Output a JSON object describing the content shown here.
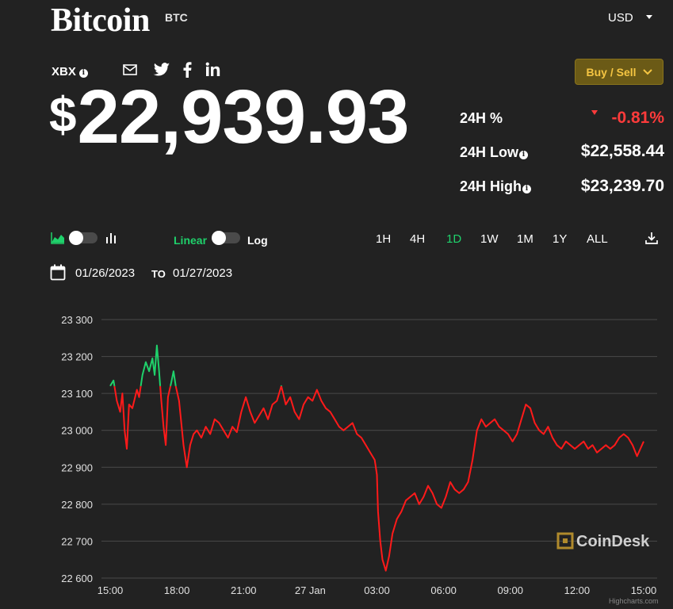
{
  "header": {
    "title": "Bitcoin",
    "ticker": "BTC",
    "currency": "USD",
    "index_label": "XBX",
    "buy_sell_label": "Buy / Sell"
  },
  "price": {
    "currency_symbol": "$",
    "value": "22,939.93"
  },
  "stats": {
    "change_label": "24H %",
    "change_value": "-0.81%",
    "low_label": "24H Low",
    "low_value": "$22,558.44",
    "high_label": "24H High",
    "high_value": "$23,239.70"
  },
  "controls": {
    "scale_linear": "Linear",
    "scale_log": "Log",
    "ranges": [
      "1H",
      "4H",
      "1D",
      "1W",
      "1M",
      "1Y",
      "ALL"
    ],
    "active_range": "1D",
    "date_from": "01/26/2023",
    "date_to_label": "TO",
    "date_to": "01/27/2023"
  },
  "watermark": "CoinDesk",
  "credit": "Highcharts.com",
  "colors": {
    "up": "#1fd16b",
    "down": "#ff1a1a",
    "accent": "#f5c542"
  },
  "icons": [
    "info-icon",
    "mail-icon",
    "twitter-icon",
    "facebook-icon",
    "linkedin-icon",
    "area-chart-icon",
    "bar-chart-icon",
    "download-icon",
    "calendar-icon",
    "coindesk-logo"
  ],
  "chart_data": {
    "type": "line",
    "yticks": [
      22600,
      22700,
      22800,
      22900,
      23000,
      23100,
      23200,
      23300
    ],
    "ytick_labels": [
      "22 600",
      "22 700",
      "22 800",
      "22 900",
      "23 000",
      "23 100",
      "23 200",
      "23 300"
    ],
    "ylim": [
      22600,
      23300
    ],
    "xticks": [
      0,
      3,
      6,
      9,
      12,
      15,
      18,
      21,
      24
    ],
    "xtick_labels": [
      "15:00",
      "18:00",
      "21:00",
      "27 Jan",
      "03:00",
      "06:00",
      "09:00",
      "12:00",
      "15:00"
    ],
    "xlim": [
      0,
      24
    ],
    "x_unit": "hours since 15:00 Jan 26",
    "threshold": 23120,
    "series": [
      {
        "name": "",
        "points": [
          [
            0.0,
            23120
          ],
          [
            0.15,
            23135
          ],
          [
            0.3,
            23080
          ],
          [
            0.45,
            23050
          ],
          [
            0.55,
            23100
          ],
          [
            0.65,
            23000
          ],
          [
            0.75,
            22950
          ],
          [
            0.85,
            23070
          ],
          [
            1.0,
            23060
          ],
          [
            1.2,
            23110
          ],
          [
            1.3,
            23090
          ],
          [
            1.45,
            23150
          ],
          [
            1.6,
            23185
          ],
          [
            1.75,
            23160
          ],
          [
            1.9,
            23195
          ],
          [
            2.0,
            23150
          ],
          [
            2.1,
            23230
          ],
          [
            2.2,
            23160
          ],
          [
            2.3,
            23080
          ],
          [
            2.4,
            23010
          ],
          [
            2.5,
            22960
          ],
          [
            2.6,
            23090
          ],
          [
            2.75,
            23130
          ],
          [
            2.85,
            23160
          ],
          [
            2.95,
            23120
          ],
          [
            3.1,
            23080
          ],
          [
            3.2,
            23020
          ],
          [
            3.3,
            22960
          ],
          [
            3.45,
            22900
          ],
          [
            3.6,
            22960
          ],
          [
            3.75,
            22990
          ],
          [
            3.9,
            23000
          ],
          [
            4.1,
            22980
          ],
          [
            4.3,
            23010
          ],
          [
            4.5,
            22990
          ],
          [
            4.7,
            23030
          ],
          [
            4.9,
            23020
          ],
          [
            5.1,
            23000
          ],
          [
            5.3,
            22980
          ],
          [
            5.5,
            23010
          ],
          [
            5.7,
            22995
          ],
          [
            5.9,
            23050
          ],
          [
            6.1,
            23090
          ],
          [
            6.3,
            23050
          ],
          [
            6.5,
            23020
          ],
          [
            6.7,
            23040
          ],
          [
            6.9,
            23060
          ],
          [
            7.1,
            23030
          ],
          [
            7.3,
            23070
          ],
          [
            7.5,
            23080
          ],
          [
            7.7,
            23120
          ],
          [
            7.9,
            23070
          ],
          [
            8.1,
            23090
          ],
          [
            8.3,
            23050
          ],
          [
            8.5,
            23030
          ],
          [
            8.7,
            23070
          ],
          [
            8.9,
            23090
          ],
          [
            9.1,
            23080
          ],
          [
            9.3,
            23110
          ],
          [
            9.5,
            23080
          ],
          [
            9.7,
            23060
          ],
          [
            9.9,
            23050
          ],
          [
            10.1,
            23030
          ],
          [
            10.3,
            23010
          ],
          [
            10.5,
            23000
          ],
          [
            10.7,
            23010
          ],
          [
            10.9,
            23020
          ],
          [
            11.1,
            22990
          ],
          [
            11.3,
            22980
          ],
          [
            11.5,
            22960
          ],
          [
            11.7,
            22940
          ],
          [
            11.9,
            22920
          ],
          [
            12.0,
            22880
          ],
          [
            12.05,
            22780
          ],
          [
            12.15,
            22700
          ],
          [
            12.25,
            22650
          ],
          [
            12.4,
            22620
          ],
          [
            12.55,
            22660
          ],
          [
            12.7,
            22720
          ],
          [
            12.9,
            22760
          ],
          [
            13.1,
            22780
          ],
          [
            13.3,
            22810
          ],
          [
            13.5,
            22820
          ],
          [
            13.7,
            22830
          ],
          [
            13.9,
            22800
          ],
          [
            14.1,
            22820
          ],
          [
            14.3,
            22850
          ],
          [
            14.5,
            22830
          ],
          [
            14.7,
            22800
          ],
          [
            14.9,
            22790
          ],
          [
            15.1,
            22820
          ],
          [
            15.3,
            22860
          ],
          [
            15.5,
            22840
          ],
          [
            15.7,
            22830
          ],
          [
            15.9,
            22840
          ],
          [
            16.1,
            22860
          ],
          [
            16.3,
            22920
          ],
          [
            16.5,
            23000
          ],
          [
            16.7,
            23030
          ],
          [
            16.9,
            23010
          ],
          [
            17.1,
            23020
          ],
          [
            17.3,
            23030
          ],
          [
            17.5,
            23010
          ],
          [
            17.7,
            23000
          ],
          [
            17.9,
            22990
          ],
          [
            18.1,
            22970
          ],
          [
            18.3,
            22990
          ],
          [
            18.5,
            23030
          ],
          [
            18.7,
            23070
          ],
          [
            18.9,
            23060
          ],
          [
            19.1,
            23020
          ],
          [
            19.3,
            23000
          ],
          [
            19.5,
            22990
          ],
          [
            19.7,
            23010
          ],
          [
            19.9,
            22980
          ],
          [
            20.1,
            22960
          ],
          [
            20.3,
            22950
          ],
          [
            20.5,
            22970
          ],
          [
            20.7,
            22960
          ],
          [
            20.9,
            22950
          ],
          [
            21.1,
            22960
          ],
          [
            21.3,
            22970
          ],
          [
            21.5,
            22950
          ],
          [
            21.7,
            22960
          ],
          [
            21.9,
            22940
          ],
          [
            22.1,
            22950
          ],
          [
            22.3,
            22960
          ],
          [
            22.5,
            22950
          ],
          [
            22.7,
            22960
          ],
          [
            22.9,
            22980
          ],
          [
            23.1,
            22990
          ],
          [
            23.3,
            22980
          ],
          [
            23.5,
            22960
          ],
          [
            23.7,
            22930
          ],
          [
            23.85,
            22950
          ],
          [
            24.0,
            22970
          ]
        ]
      }
    ]
  }
}
